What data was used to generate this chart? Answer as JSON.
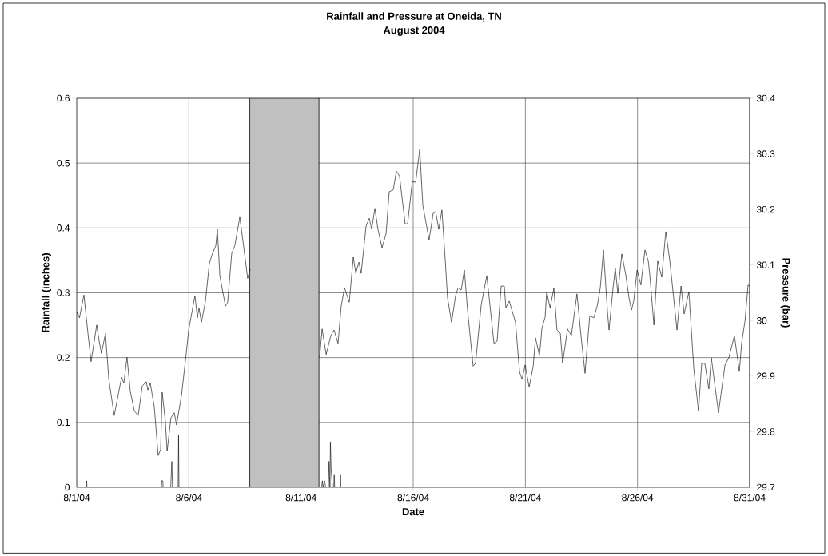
{
  "chart_data": {
    "type": "line",
    "title": "Rainfall and Pressure at Oneida, TN",
    "subtitle": "August 2004",
    "xlabel": "Date",
    "ylabel": "Rainfall (inches)",
    "y2label": "Pressure (bar)",
    "xlim": [
      "2004-08-01",
      "2004-08-31"
    ],
    "xticks": [
      {
        "value": "2004-08-01",
        "label": "8/1/04"
      },
      {
        "value": "2004-08-06",
        "label": "8/6/04"
      },
      {
        "value": "2004-08-11",
        "label": "8/11/04"
      },
      {
        "value": "2004-08-16",
        "label": "8/16/04"
      },
      {
        "value": "2004-08-21",
        "label": "8/21/04"
      },
      {
        "value": "2004-08-26",
        "label": "8/26/04"
      },
      {
        "value": "2004-08-31",
        "label": "8/31/04"
      }
    ],
    "ylim": [
      0,
      0.6
    ],
    "yticks": [
      0,
      0.1,
      0.2,
      0.3,
      0.4,
      0.5,
      0.6
    ],
    "y2lim": [
      29.7,
      30.4
    ],
    "y2ticks": [
      29.7,
      29.8,
      29.9,
      30,
      30.1,
      30.2,
      30.3,
      30.4
    ],
    "grid": true,
    "bands": [
      {
        "axis": "x",
        "from": "2004-08-08T17:31",
        "to": "2004-08-11T19:12",
        "color": "#c0c0c0"
      }
    ],
    "series": [
      {
        "color": "#000000",
        "x": [
          "2004-08-01T00:00",
          "2004-08-01T10:05",
          "2004-08-01T10:34",
          "2004-08-01T11:02",
          "2004-08-04T18:43",
          "2004-08-04T18:58",
          "2004-08-04T20:10",
          "2004-08-04T20:24",
          "2004-08-05T04:34",
          "2004-08-05T05:46",
          "2004-08-05T06:29",
          "2004-08-05T12:29",
          "2004-08-05T12:58",
          "2004-08-05T13:26",
          "2004-08-08T16:48",
          "2004-08-10T07:12",
          "2004-08-11T19:55",
          "2004-08-11T22:05",
          "2004-08-11T22:48",
          "2004-08-11T23:31",
          "2004-08-12T01:12",
          "2004-08-12T02:24",
          "2004-08-12T05:17",
          "2004-08-12T06:00",
          "2004-08-12T06:58",
          "2004-08-12T07:26",
          "2004-08-12T08:10",
          "2004-08-12T09:36",
          "2004-08-12T11:02",
          "2004-08-12T11:31",
          "2004-08-12T12:00",
          "2004-08-12T17:46",
          "2004-08-12T18:14",
          "2004-08-12T18:43",
          "2004-08-31T00:00"
        ],
        "values": [
          0,
          0,
          0.01,
          0,
          0,
          0.01,
          0.01,
          0,
          0,
          0.04,
          0,
          0,
          0.08,
          0,
          0,
          null,
          0,
          0,
          0.01,
          0,
          0.01,
          0,
          0,
          0.04,
          0,
          0.07,
          0.03,
          0,
          0,
          0.02,
          0,
          0,
          0.02,
          0,
          0
        ]
      },
      {
        "color": "#000000",
        "axis": "y2",
        "x": [
          "2004-08-01T00:00",
          "2004-08-01T00:29",
          "2004-08-01T02:53",
          "2004-08-01T07:41",
          "2004-08-01T12:00",
          "2004-08-01T15:22",
          "2004-08-01T21:22",
          "2004-08-02T00:00",
          "2004-08-02T02:24",
          "2004-08-02T06:43",
          "2004-08-02T10:19",
          "2004-08-02T16:05",
          "2004-08-03T00:00",
          "2004-08-03T02:24",
          "2004-08-03T05:46",
          "2004-08-03T09:22",
          "2004-08-03T13:41",
          "2004-08-03T17:46",
          "2004-08-03T22:05",
          "2004-08-04T02:24",
          "2004-08-04T04:05",
          "2004-08-04T06:43",
          "2004-08-04T11:02",
          "2004-08-04T15:07",
          "2004-08-04T17:46",
          "2004-08-04T19:26",
          "2004-08-04T22:48",
          "2004-08-05T00:43",
          "2004-08-05T04:48",
          "2004-08-05T08:24",
          "2004-08-05T10:48",
          "2004-08-05T16:05",
          "2004-08-05T21:07",
          "2004-08-05T23:46",
          "2004-08-06T06:29",
          "2004-08-06T09:07",
          "2004-08-06T10:48",
          "2004-08-06T13:26",
          "2004-08-06T17:46",
          "2004-08-06T21:50",
          "2004-08-07T00:29",
          "2004-08-07T04:48",
          "2004-08-07T06:29",
          "2004-08-07T09:07",
          "2004-08-07T15:07",
          "2004-08-07T17:31",
          "2004-08-07T21:50",
          "2004-08-08T01:12",
          "2004-08-08T06:29",
          "2004-08-08T10:48",
          "2004-08-08T14:53",
          "2004-08-08T17:31",
          "2004-08-10T07:12",
          "2004-08-11T19:55",
          "2004-08-11T22:34",
          "2004-08-12T02:53",
          "2004-08-12T07:55",
          "2004-08-12T11:17",
          "2004-08-12T15:36",
          "2004-08-12T18:58",
          "2004-08-12T22:34",
          "2004-08-13T03:36",
          "2004-08-13T07:55",
          "2004-08-13T10:34",
          "2004-08-13T13:55",
          "2004-08-13T16:19",
          "2004-08-13T21:36",
          "2004-08-14T00:58",
          "2004-08-14T03:36",
          "2004-08-14T06:58",
          "2004-08-14T10:19",
          "2004-08-14T14:38",
          "2004-08-14T18:58",
          "2004-08-14T22:19",
          "2004-08-15T02:38",
          "2004-08-15T06:00",
          "2004-08-15T09:22",
          "2004-08-15T15:22",
          "2004-08-15T18:00",
          "2004-08-15T23:02",
          "2004-08-16T02:38",
          "2004-08-16T06:58",
          "2004-08-16T10:19",
          "2004-08-16T17:02",
          "2004-08-16T21:22",
          "2004-08-17T00:00",
          "2004-08-17T03:22",
          "2004-08-17T06:43",
          "2004-08-17T10:19",
          "2004-08-17T12:43",
          "2004-08-17T17:02",
          "2004-08-17T21:22",
          "2004-08-18T00:00",
          "2004-08-18T03:22",
          "2004-08-18T06:43",
          "2004-08-18T10:05",
          "2004-08-18T16:05",
          "2004-08-18T18:43",
          "2004-08-19T00:43",
          "2004-08-19T06:43",
          "2004-08-19T14:24",
          "2004-08-19T17:46",
          "2004-08-19T22:05",
          "2004-08-20T01:26",
          "2004-08-20T03:07",
          "2004-08-20T06:43",
          "2004-08-20T13:26",
          "2004-08-20T17:46",
          "2004-08-20T20:24",
          "2004-08-20T23:46",
          "2004-08-21T04:05",
          "2004-08-21T08:24",
          "2004-08-21T10:48",
          "2004-08-21T15:07",
          "2004-08-21T17:46",
          "2004-08-21T21:07",
          "2004-08-21T22:48",
          "2004-08-22T02:24",
          "2004-08-22T06:29",
          "2004-08-22T09:50",
          "2004-08-22T13:26",
          "2004-08-22T15:50",
          "2004-08-22T21:07",
          "2004-08-23T01:12",
          "2004-08-23T07:12",
          "2004-08-23T11:31",
          "2004-08-23T15:50",
          "2004-08-23T20:53",
          "2004-08-24T01:12",
          "2004-08-24T04:48",
          "2004-08-24T08:10",
          "2004-08-24T11:31",
          "2004-08-24T15:50",
          "2004-08-24T17:31",
          "2004-08-24T21:50",
          "2004-08-25T00:14",
          "2004-08-25T02:53",
          "2004-08-25T07:12",
          "2004-08-25T11:31",
          "2004-08-25T14:53",
          "2004-08-25T17:31",
          "2004-08-25T19:55",
          "2004-08-25T23:31",
          "2004-08-26T03:36",
          "2004-08-26T07:55",
          "2004-08-26T11:31",
          "2004-08-26T13:12",
          "2004-08-26T17:31",
          "2004-08-26T21:36",
          "2004-08-27T01:55",
          "2004-08-27T06:14",
          "2004-08-27T10:34",
          "2004-08-27T18:14",
          "2004-08-27T22:34",
          "2004-08-28T01:55",
          "2004-08-28T06:58",
          "2004-08-28T12:14",
          "2004-08-28T17:17",
          "2004-08-28T20:38",
          "2004-08-29T00:00",
          "2004-08-29T04:19",
          "2004-08-29T06:58",
          "2004-08-29T14:38",
          "2004-08-29T21:36",
          "2004-08-30T01:41",
          "2004-08-30T07:41",
          "2004-08-30T12:58",
          "2004-08-30T15:22",
          "2004-08-30T18:58",
          "2004-08-30T22:19",
          "2004-08-31T00:00"
        ],
        "values": [
          30.012,
          30.016,
          30.005,
          30.046,
          29.977,
          29.926,
          29.992,
          29.963,
          29.941,
          29.977,
          29.894,
          29.829,
          29.898,
          29.887,
          29.934,
          29.872,
          29.837,
          29.829,
          29.882,
          29.89,
          29.875,
          29.887,
          29.844,
          29.757,
          29.768,
          29.871,
          29.819,
          29.765,
          29.825,
          29.834,
          29.812,
          29.865,
          29.94,
          29.983,
          30.045,
          30.005,
          30.023,
          29.997,
          30.035,
          30.102,
          30.117,
          30.135,
          30.164,
          30.081,
          30.026,
          30.033,
          30.121,
          30.135,
          30.186,
          30.131,
          30.076,
          30.092,
          null,
          29.934,
          29.985,
          29.939,
          29.973,
          29.983,
          29.959,
          30.026,
          30.059,
          30.033,
          30.114,
          30.085,
          30.105,
          30.085,
          30.17,
          30.184,
          30.164,
          30.202,
          30.164,
          30.131,
          30.156,
          30.232,
          30.235,
          30.269,
          30.26,
          30.174,
          30.174,
          30.25,
          30.249,
          30.308,
          30.207,
          30.145,
          30.193,
          30.196,
          30.164,
          30.199,
          30.107,
          30.041,
          29.997,
          30.045,
          30.059,
          30.055,
          30.091,
          30.02,
          29.918,
          29.923,
          30.028,
          30.081,
          29.959,
          29.963,
          30.062,
          30.062,
          30.023,
          30.035,
          29.997,
          29.908,
          29.894,
          29.92,
          29.88,
          29.918,
          29.969,
          29.937,
          29.987,
          30.006,
          30.052,
          30.023,
          30.058,
          29.983,
          29.977,
          29.923,
          29.985,
          29.973,
          30.048,
          29.973,
          29.905,
          30.009,
          30.005,
          30.026,
          30.059,
          30.127,
          30.016,
          29.983,
          30.059,
          30.095,
          30.049,
          30.12,
          30.081,
          30.041,
          30.019,
          30.035,
          30.091,
          30.064,
          30.127,
          30.107,
          30.081,
          29.992,
          30.107,
          30.078,
          30.16,
          30.107,
          29.983,
          30.062,
          30.012,
          30.052,
          29.913,
          29.837,
          29.923,
          29.923,
          29.877,
          29.933,
          29.834,
          29.92,
          29.933,
          29.973,
          29.908,
          29.959,
          29.999,
          30.064,
          30.062
        ]
      }
    ]
  }
}
